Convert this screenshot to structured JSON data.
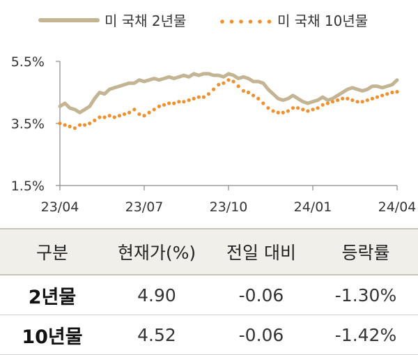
{
  "chart_data": {
    "type": "line",
    "title": "",
    "xlabel": "",
    "ylabel": "",
    "ylim": [
      1.5,
      5.5
    ],
    "yticks": [
      "5.5%",
      "3.5%",
      "1.5%"
    ],
    "xticks": [
      "23/04",
      "23/07",
      "23/10",
      "24/01",
      "24/04"
    ],
    "legend_position": "top",
    "grid": false,
    "series": [
      {
        "name": "미 국채 2년물",
        "style": "solid",
        "color": "#c3b493",
        "values": [
          4.05,
          4.15,
          4.0,
          3.95,
          3.85,
          3.95,
          4.05,
          4.3,
          4.5,
          4.45,
          4.6,
          4.65,
          4.7,
          4.75,
          4.8,
          4.8,
          4.9,
          4.85,
          4.9,
          4.95,
          4.9,
          4.95,
          5.0,
          4.95,
          5.0,
          5.05,
          5.0,
          5.1,
          5.05,
          5.1,
          5.1,
          5.05,
          5.05,
          5.0,
          5.1,
          5.05,
          4.95,
          5.0,
          4.95,
          4.85,
          4.85,
          4.8,
          4.6,
          4.45,
          4.3,
          4.25,
          4.3,
          4.4,
          4.3,
          4.2,
          4.15,
          4.2,
          4.25,
          4.35,
          4.25,
          4.3,
          4.4,
          4.5,
          4.6,
          4.65,
          4.6,
          4.55,
          4.6,
          4.7,
          4.7,
          4.65,
          4.7,
          4.75,
          4.9
        ]
      },
      {
        "name": "미 국채 10년물",
        "style": "dotted",
        "color": "#f0902e",
        "values": [
          3.5,
          3.45,
          3.4,
          3.35,
          3.45,
          3.45,
          3.5,
          3.6,
          3.7,
          3.7,
          3.75,
          3.7,
          3.75,
          3.8,
          3.85,
          3.95,
          3.8,
          3.75,
          3.85,
          3.95,
          4.05,
          4.1,
          4.15,
          4.15,
          4.2,
          4.2,
          4.25,
          4.3,
          4.35,
          4.35,
          4.45,
          4.6,
          4.75,
          4.8,
          4.9,
          4.85,
          4.7,
          4.55,
          4.5,
          4.4,
          4.3,
          4.15,
          4.0,
          3.9,
          3.85,
          3.85,
          3.9,
          4.0,
          4.0,
          3.95,
          3.9,
          3.95,
          4.0,
          4.1,
          4.15,
          4.2,
          4.25,
          4.3,
          4.3,
          4.25,
          4.2,
          4.2,
          4.25,
          4.3,
          4.35,
          4.4,
          4.45,
          4.5,
          4.52
        ]
      }
    ]
  },
  "table": {
    "headers": [
      "구분",
      "현재가(%)",
      "전일 대비",
      "등락률"
    ],
    "rows": [
      {
        "label": "2년물",
        "price": "4.90",
        "change": "-0.06",
        "rate": "-1.30%"
      },
      {
        "label": "10년물",
        "price": "4.52",
        "change": "-0.06",
        "rate": "-1.42%"
      }
    ]
  }
}
